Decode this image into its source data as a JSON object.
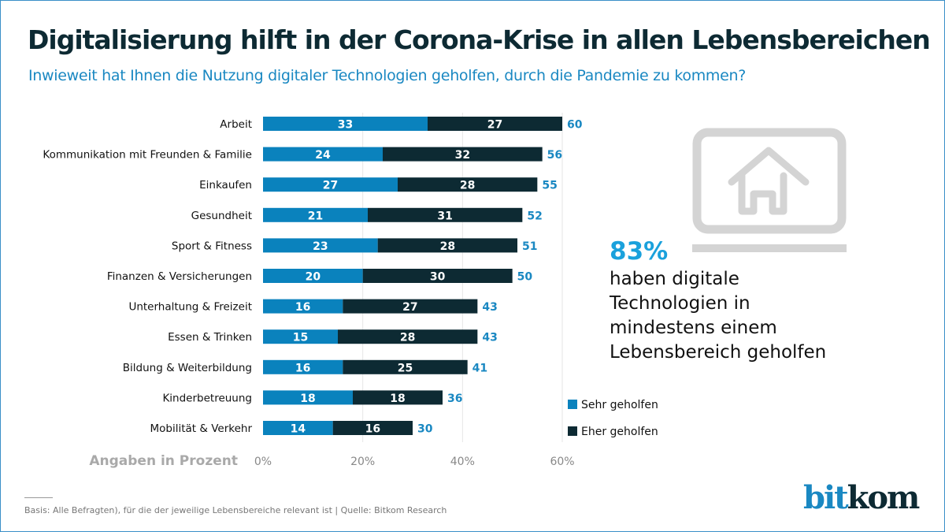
{
  "header": {
    "title": "Digitalisierung hilft in der Corona-Krise in allen Lebensbereichen",
    "subtitle": "Inwieweit hat Ihnen die Nutzung digitaler Technologien geholfen, durch die Pandemie zu kommen?"
  },
  "chart_data": {
    "type": "bar",
    "stacked": true,
    "orientation": "horizontal",
    "categories": [
      "Arbeit",
      "Kommunikation mit Freunden & Familie",
      "Einkaufen",
      "Gesundheit",
      "Sport & Fitness",
      "Finanzen & Versicherungen",
      "Unterhaltung & Freizeit",
      "Essen & Trinken",
      "Bildung & Weiterbildung",
      "Kinderbetreuung",
      "Mobilität & Verkehr"
    ],
    "series": [
      {
        "name": "Sehr geholfen",
        "color": "#0a82bd",
        "values": [
          33,
          24,
          27,
          21,
          23,
          20,
          16,
          15,
          16,
          18,
          14
        ]
      },
      {
        "name": "Eher geholfen",
        "color": "#0d2a33",
        "values": [
          27,
          32,
          28,
          31,
          28,
          30,
          27,
          28,
          25,
          18,
          16
        ]
      }
    ],
    "totals": [
      60,
      56,
      55,
      52,
      51,
      50,
      43,
      43,
      41,
      36,
      30
    ],
    "xlabel": "Angaben in Prozent",
    "xlim": [
      0,
      60
    ],
    "xticks": [
      "0%",
      "20%",
      "40%",
      "60%"
    ],
    "grid": true,
    "legend": "right",
    "total_color": "#1a88c2"
  },
  "highlight": {
    "value": "83%",
    "text": "haben digitale Technologien in mindestens einem Lebensbereich geholfen",
    "icon": "laptop-home-icon"
  },
  "footer": {
    "note": "Basis: Alle Befragten), für die der jeweilige Lebensbereiche relevant ist  | Quelle: Bitkom Research",
    "logo_a": "bit",
    "logo_b": "kom"
  }
}
